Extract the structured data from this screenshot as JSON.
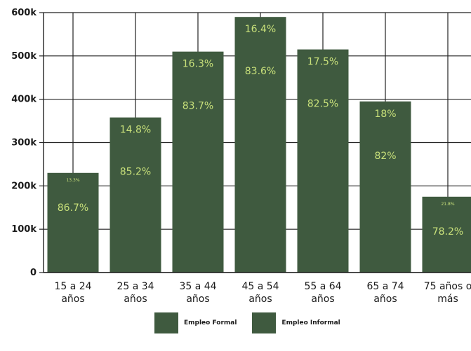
{
  "chart_data": {
    "type": "bar",
    "categories": [
      [
        "15 a 24",
        "años"
      ],
      [
        "25 a 34",
        "años"
      ],
      [
        "35 a 44",
        "años"
      ],
      [
        "45 a 54",
        "años"
      ],
      [
        "55 a 64",
        "años"
      ],
      [
        "65 a 74",
        "años"
      ],
      [
        "75 años o",
        "más"
      ]
    ],
    "values": [
      230000,
      358000,
      510000,
      590000,
      515000,
      395000,
      175000
    ],
    "formal_pct_labels": [
      "13.3%",
      "14.8%",
      "16.3%",
      "16.4%",
      "17.5%",
      "18%",
      "21.8%"
    ],
    "informal_pct_labels": [
      "86.7%",
      "85.2%",
      "83.7%",
      "83.6%",
      "82.5%",
      "82%",
      "78.2%"
    ],
    "yticks": [
      0,
      100000,
      200000,
      300000,
      400000,
      500000,
      600000
    ],
    "ytick_labels": [
      "0",
      "100k",
      "200k",
      "300k",
      "400k",
      "500k",
      "600k"
    ],
    "ylim": [
      0,
      600000
    ],
    "grid": true,
    "legend_position": "bottom",
    "series": [
      {
        "name": "Empleo Formal",
        "color": "#3f5a3f"
      },
      {
        "name": "Empleo Informal",
        "color": "#3f5a3f"
      }
    ],
    "bar_color": "#3f5a3f",
    "label_color": "#c8e07a"
  }
}
